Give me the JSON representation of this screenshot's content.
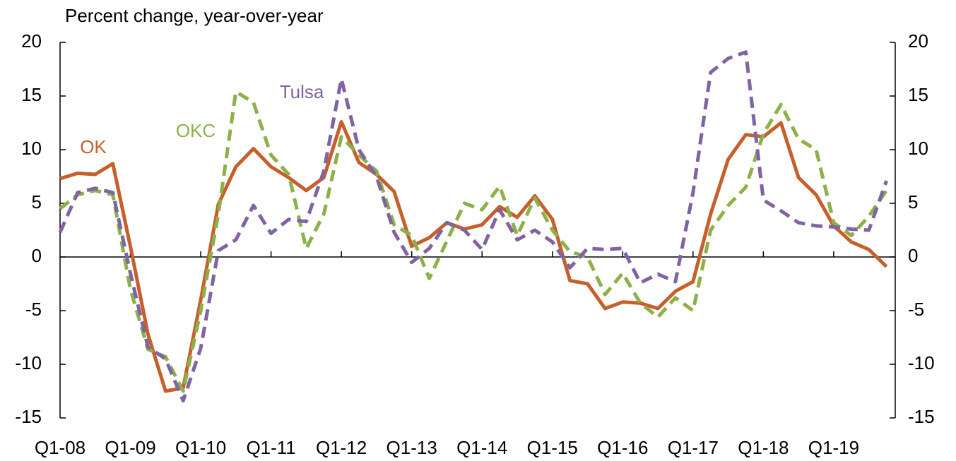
{
  "chart_data": {
    "type": "line",
    "y_label": "Percent change, year-over-year",
    "categories": [
      "Q1-08",
      null,
      null,
      null,
      "Q1-09",
      null,
      null,
      null,
      "Q1-10",
      null,
      null,
      null,
      "Q1-11",
      null,
      null,
      null,
      "Q1-12",
      null,
      null,
      null,
      "Q1-13",
      null,
      null,
      null,
      "Q1-14",
      null,
      null,
      null,
      "Q1-15",
      null,
      null,
      null,
      "Q1-16",
      null,
      null,
      null,
      "Q1-17",
      null,
      null,
      null,
      "Q1-18",
      null,
      null,
      null,
      "Q1-19",
      null,
      null,
      null
    ],
    "series": [
      {
        "name": "OK",
        "color": "#c65f2c",
        "dashed": false,
        "values": [
          7.3,
          7.8,
          7.7,
          8.7,
          1.0,
          -7.2,
          -12.5,
          -12.2,
          -4.0,
          4.9,
          8.4,
          10.1,
          8.4,
          7.4,
          6.2,
          7.4,
          12.6,
          8.8,
          7.7,
          6.1,
          1.0,
          1.8,
          3.2,
          2.6,
          3.0,
          4.7,
          3.7,
          5.7,
          3.5,
          -2.2,
          -2.5,
          -4.8,
          -4.2,
          -4.3,
          -4.8,
          -3.2,
          -2.3,
          4.0,
          9.1,
          11.4,
          11.2,
          12.5,
          7.4,
          5.8,
          2.9,
          1.4,
          0.7,
          -0.9
        ]
      },
      {
        "name": "OKC",
        "color": "#8db04a",
        "dashed": true,
        "values": [
          4.5,
          5.8,
          6.2,
          5.8,
          -3.0,
          -8.6,
          -9.3,
          -12.5,
          -5.0,
          4.0,
          15.4,
          14.4,
          9.5,
          7.7,
          0.8,
          4.0,
          11.2,
          9.5,
          8.0,
          3.0,
          2.0,
          -2.0,
          1.5,
          5.0,
          4.4,
          6.6,
          2.0,
          5.5,
          2.5,
          0.5,
          0.0,
          -3.5,
          -1.5,
          -4.3,
          -5.6,
          -3.8,
          -5.0,
          2.5,
          4.8,
          6.5,
          11.5,
          14.2,
          11.0,
          10.0,
          3.2,
          2.0,
          3.8,
          6.2
        ]
      },
      {
        "name": "Tulsa",
        "color": "#8064a2",
        "dashed": true,
        "values": [
          2.3,
          6.0,
          6.4,
          6.0,
          -1.5,
          -8.4,
          -9.5,
          -13.4,
          -8.5,
          0.6,
          1.6,
          4.8,
          2.2,
          3.5,
          3.3,
          8.0,
          16.6,
          10.0,
          7.5,
          2.3,
          -0.5,
          0.8,
          3.2,
          2.5,
          0.7,
          4.4,
          1.6,
          2.5,
          1.4,
          -1.0,
          0.8,
          0.7,
          0.8,
          -2.4,
          -1.6,
          -2.3,
          6.0,
          17.2,
          18.5,
          19.1,
          5.3,
          4.3,
          3.2,
          2.9,
          2.8,
          2.6,
          2.5,
          7.1
        ]
      }
    ],
    "ylim": [
      -15,
      20
    ],
    "yticks": [
      -15,
      -10,
      -5,
      0,
      5,
      10,
      15,
      20
    ]
  }
}
